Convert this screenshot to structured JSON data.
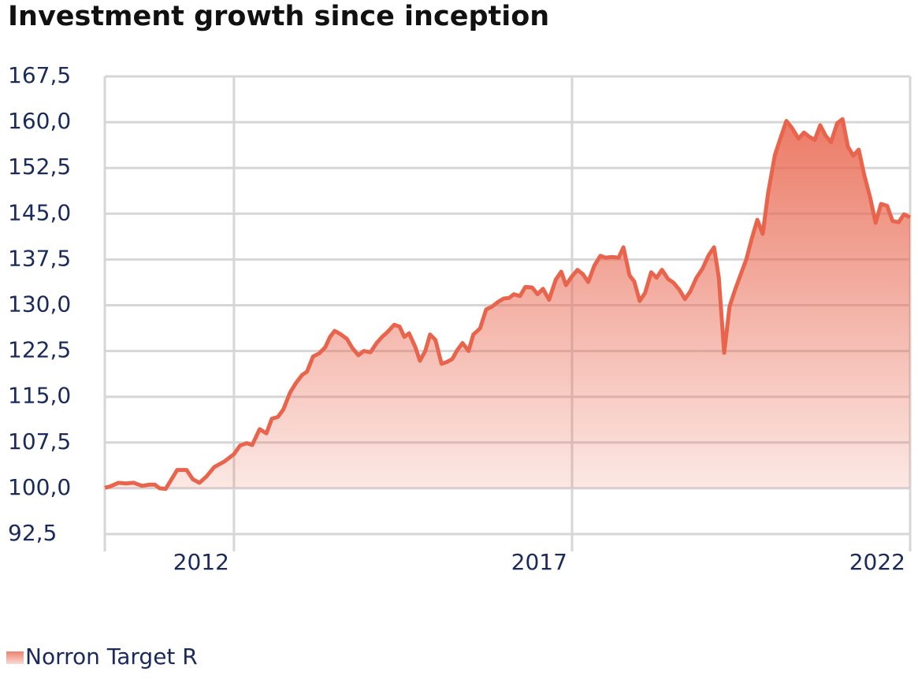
{
  "chart_data": {
    "type": "area",
    "title": "Investment growth since inception",
    "x": [
      2010.09,
      2010.17,
      2010.29,
      2010.4,
      2010.52,
      2010.64,
      2010.75,
      2010.83,
      2010.9,
      2010.99,
      2011.16,
      2011.3,
      2011.39,
      2011.49,
      2011.59,
      2011.71,
      2011.86,
      2012.0,
      2012.09,
      2012.19,
      2012.27,
      2012.38,
      2012.48,
      2012.56,
      2012.65,
      2012.73,
      2012.83,
      2012.92,
      2013.01,
      2013.08,
      2013.17,
      2013.26,
      2013.35,
      2013.42,
      2013.49,
      2013.57,
      2013.67,
      2013.75,
      2013.84,
      2013.92,
      2014.02,
      2014.11,
      2014.19,
      2014.27,
      2014.37,
      2014.45,
      2014.52,
      2014.59,
      2014.68,
      2014.75,
      2014.83,
      2014.9,
      2014.98,
      2015.07,
      2015.15,
      2015.23,
      2015.3,
      2015.38,
      2015.47,
      2015.54,
      2015.64,
      2015.73,
      2015.82,
      2015.9,
      2015.99,
      2016.07,
      2016.14,
      2016.23,
      2016.31,
      2016.41,
      2016.49,
      2016.57,
      2016.66,
      2016.76,
      2016.84,
      2016.91,
      2016.99,
      2017.08,
      2017.16,
      2017.24,
      2017.33,
      2017.42,
      2017.49,
      2017.59,
      2017.69,
      2017.76,
      2017.85,
      2017.92,
      2018.0,
      2018.08,
      2018.17,
      2018.25,
      2018.33,
      2018.42,
      2018.5,
      2018.59,
      2018.67,
      2018.75,
      2018.84,
      2018.93,
      2019.02,
      2019.1,
      2019.17,
      2019.25,
      2019.33,
      2019.41,
      2019.49,
      2019.58,
      2019.66,
      2019.74,
      2019.82,
      2019.9,
      2020.0,
      2020.08,
      2020.17,
      2020.25,
      2020.35,
      2020.43,
      2020.51,
      2020.59,
      2020.67,
      2020.75,
      2020.83,
      2020.92,
      2021.0,
      2021.08,
      2021.16,
      2021.24,
      2021.32,
      2021.41,
      2021.49,
      2021.57,
      2021.66,
      2021.74,
      2021.83,
      2021.91,
      2022.0
    ],
    "series": [
      {
        "name": "Norron Target R",
        "color": "#e8644c",
        "fill_baseline": 100,
        "values": [
          100.1,
          100.3,
          100.9,
          100.8,
          100.9,
          100.4,
          100.6,
          100.6,
          100.0,
          99.9,
          103.0,
          103.0,
          101.5,
          100.9,
          101.9,
          103.5,
          104.4,
          105.6,
          107.0,
          107.4,
          107.1,
          109.7,
          109.0,
          111.4,
          111.7,
          112.9,
          115.7,
          117.3,
          118.6,
          119.1,
          121.6,
          122.1,
          123.1,
          124.8,
          125.8,
          125.3,
          124.5,
          123.0,
          121.8,
          122.5,
          122.3,
          123.8,
          124.8,
          125.6,
          126.8,
          126.5,
          124.8,
          125.4,
          123.2,
          120.9,
          122.5,
          125.2,
          124.3,
          120.4,
          120.7,
          121.2,
          122.6,
          123.8,
          122.5,
          125.2,
          126.2,
          129.3,
          129.8,
          130.5,
          131.1,
          131.2,
          131.8,
          131.5,
          133.0,
          132.9,
          131.8,
          132.7,
          130.9,
          134.2,
          135.5,
          133.3,
          134.6,
          135.8,
          135.1,
          133.8,
          136.5,
          138.1,
          137.8,
          137.9,
          137.8,
          139.5,
          134.9,
          133.9,
          130.7,
          132.0,
          135.4,
          134.5,
          135.8,
          134.3,
          133.7,
          132.5,
          131.0,
          132.3,
          134.5,
          136.0,
          138.2,
          139.5,
          134.6,
          122.2,
          129.8,
          132.5,
          134.9,
          137.6,
          141.0,
          144.0,
          141.7,
          148.4,
          154.6,
          157.3,
          160.2,
          159.1,
          157.3,
          158.3,
          157.6,
          157.1,
          159.5,
          157.8,
          156.7,
          159.8,
          160.5,
          156.0,
          154.5,
          155.5,
          151.4,
          147.6,
          143.5,
          146.6,
          146.3,
          143.8,
          143.6,
          144.9,
          144.4
        ]
      }
    ],
    "xlim": [
      2010.09,
      2022
    ],
    "xticks": [
      2012,
      2017,
      2022
    ],
    "ylim": [
      92.5,
      167.5
    ],
    "yticks": [
      {
        "value": 92.5,
        "label": "92,5"
      },
      {
        "value": 100,
        "label": "100,0"
      },
      {
        "value": 107.5,
        "label": "107,5"
      },
      {
        "value": 115,
        "label": "115,0"
      },
      {
        "value": 122.5,
        "label": "122,5"
      },
      {
        "value": 130,
        "label": "130,0"
      },
      {
        "value": 137.5,
        "label": "137,5"
      },
      {
        "value": 145,
        "label": "145,0"
      },
      {
        "value": 152.5,
        "label": "152,5"
      },
      {
        "value": 160,
        "label": "160,0"
      },
      {
        "value": 167.5,
        "label": "167,5"
      }
    ],
    "grid": true,
    "legend": "bottom-left"
  }
}
